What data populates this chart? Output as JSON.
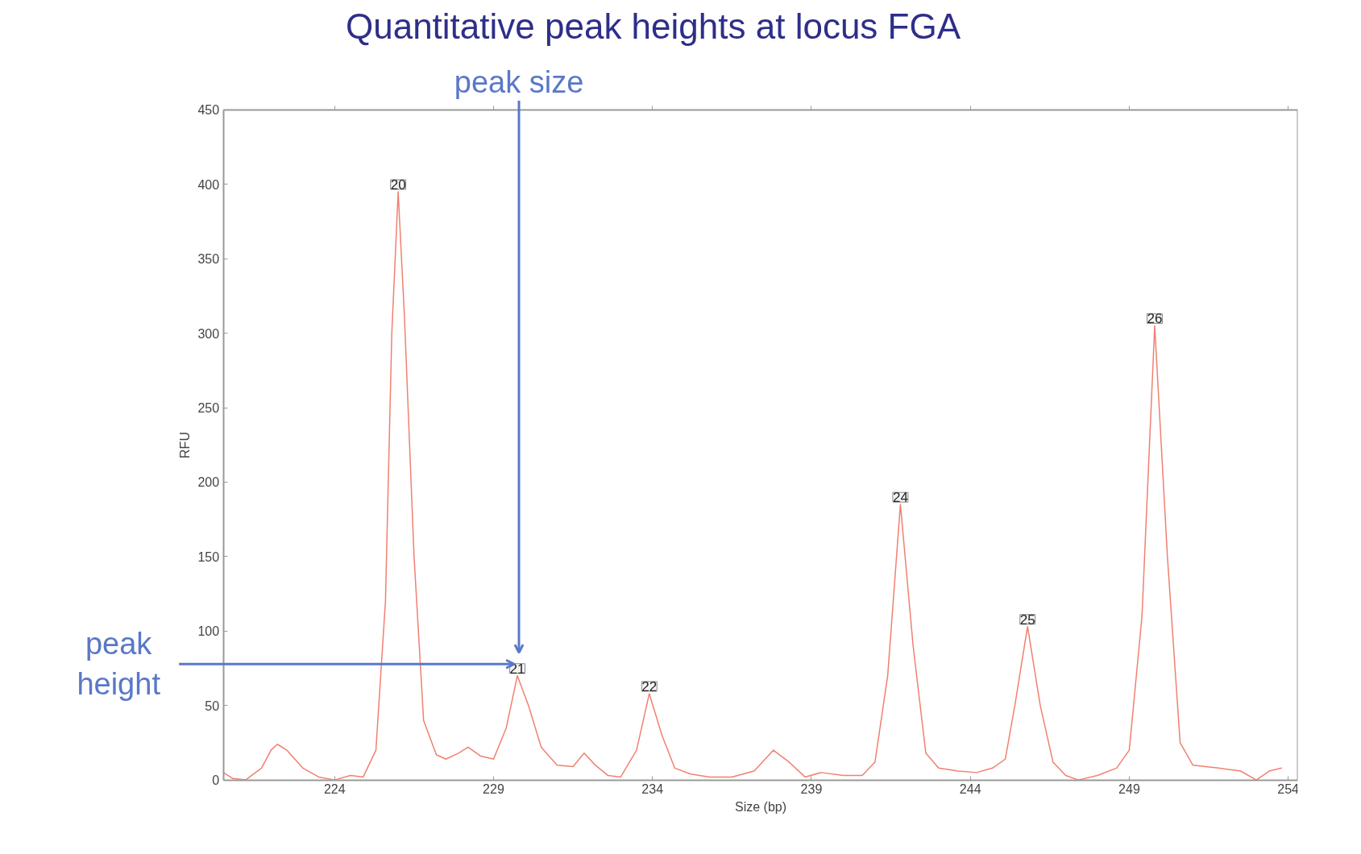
{
  "chart_data": {
    "type": "line",
    "title": "Quantitative peak heights at locus FGA",
    "xlabel": "Size (bp)",
    "ylabel": "RFU",
    "x": [
      220.5,
      220.8,
      221.2,
      221.7,
      222.0,
      222.2,
      222.5,
      223.0,
      223.5,
      224.0,
      224.5,
      224.9,
      225.3,
      225.6,
      225.8,
      226.0,
      226.2,
      226.5,
      226.8,
      227.2,
      227.5,
      227.9,
      228.2,
      228.6,
      229.0,
      229.4,
      229.75,
      230.1,
      230.5,
      231.0,
      231.5,
      231.85,
      232.2,
      232.6,
      233.0,
      233.5,
      233.9,
      234.3,
      234.7,
      235.2,
      235.8,
      236.5,
      237.2,
      237.8,
      238.3,
      238.8,
      239.3,
      240.0,
      240.6,
      241.0,
      241.4,
      241.8,
      242.2,
      242.6,
      243.0,
      243.6,
      244.2,
      244.7,
      245.1,
      245.4,
      245.8,
      246.2,
      246.6,
      247.0,
      247.4,
      248.0,
      248.6,
      249.0,
      249.4,
      249.8,
      250.2,
      250.6,
      251.0,
      251.8,
      252.5,
      253.0,
      253.4,
      253.8
    ],
    "series": [
      {
        "color": "#f08070",
        "values": [
          5,
          1,
          0,
          8,
          20,
          24,
          20,
          8,
          2,
          0,
          3,
          2,
          20,
          120,
          300,
          395,
          310,
          150,
          40,
          17,
          14,
          18,
          22,
          16,
          14,
          35,
          70,
          50,
          22,
          10,
          9,
          18,
          10,
          3,
          2,
          20,
          58,
          30,
          8,
          4,
          2,
          2,
          6,
          20,
          12,
          2,
          5,
          3,
          3,
          12,
          70,
          185,
          90,
          18,
          8,
          6,
          5,
          8,
          14,
          50,
          103,
          50,
          12,
          3,
          0,
          3,
          8,
          20,
          110,
          305,
          150,
          25,
          10,
          8,
          6,
          0,
          6,
          8
        ]
      }
    ],
    "xlim": [
      220.5,
      254.3
    ],
    "ylim": [
      0,
      450
    ],
    "xticks": [
      224,
      229,
      234,
      239,
      244,
      249,
      254
    ],
    "yticks": [
      0,
      50,
      100,
      150,
      200,
      250,
      300,
      350,
      400,
      450
    ],
    "annotations": [
      {
        "text": "20",
        "x": 226.0,
        "y": 395
      },
      {
        "text": "21",
        "x": 229.75,
        "y": 70
      },
      {
        "text": "22",
        "x": 233.9,
        "y": 58
      },
      {
        "text": "24",
        "x": 241.8,
        "y": 185
      },
      {
        "text": "25",
        "x": 245.8,
        "y": 103
      },
      {
        "text": "26",
        "x": 249.8,
        "y": 305
      },
      {
        "text": "peak size",
        "x": 229.8
      },
      "peak height"
    ]
  }
}
